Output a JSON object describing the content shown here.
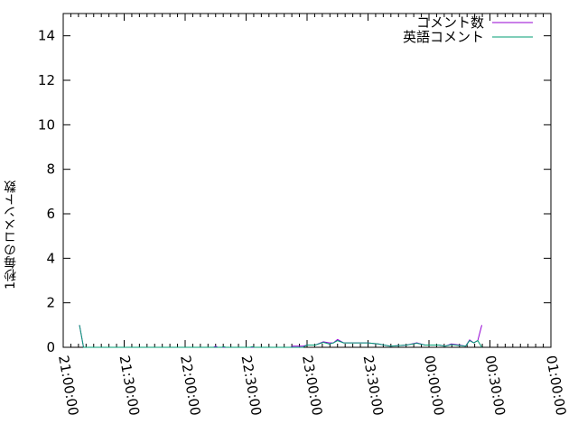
{
  "chart_data": {
    "type": "line",
    "title": "",
    "xlabel": "",
    "ylabel": "1秒毎のコメント数",
    "xlim": [
      "21:00:00",
      "01:00:00"
    ],
    "ylim": [
      0,
      15
    ],
    "x_ticks": [
      "21:00:00",
      "21:30:00",
      "22:00:00",
      "22:30:00",
      "23:00:00",
      "23:30:00",
      "00:00:00",
      "00:30:00",
      "01:00:00"
    ],
    "y_ticks": [
      "0",
      "2",
      "4",
      "6",
      "8",
      "10",
      "12",
      "14"
    ],
    "grid": false,
    "legend_position": "top-right",
    "series": [
      {
        "name": "コメント数",
        "color": "#9400d3",
        "points": [
          [
            "21:08",
            1
          ],
          [
            "21:10",
            0
          ],
          [
            "22:14",
            0
          ],
          [
            "22:15",
            0.05
          ],
          [
            "22:16",
            0
          ],
          [
            "22:52",
            0
          ],
          [
            "22:53",
            0.05
          ],
          [
            "22:58",
            0.05
          ],
          [
            "23:00",
            0.1
          ],
          [
            "23:04",
            0.1
          ],
          [
            "23:08",
            0.25
          ],
          [
            "23:11",
            0.2
          ],
          [
            "23:13",
            0.2
          ],
          [
            "23:15",
            0.35
          ],
          [
            "23:18",
            0.2
          ],
          [
            "23:30",
            0.2
          ],
          [
            "23:35",
            0.15
          ],
          [
            "23:41",
            0.05
          ],
          [
            "23:49",
            0.1
          ],
          [
            "23:54",
            0.2
          ],
          [
            "23:58",
            0.1
          ],
          [
            "00:05",
            0.1
          ],
          [
            "00:08",
            0.05
          ],
          [
            "00:11",
            0.15
          ],
          [
            "00:15",
            0.1
          ],
          [
            "00:18",
            0.05
          ],
          [
            "00:20",
            0.33
          ],
          [
            "00:22",
            0.2
          ],
          [
            "00:24",
            0.3
          ],
          [
            "00:26",
            1
          ]
        ]
      },
      {
        "name": "英語コメント",
        "color": "#009e73",
        "points": [
          [
            "21:08",
            1
          ],
          [
            "21:10",
            0
          ],
          [
            "22:18",
            0
          ],
          [
            "22:19",
            0.03
          ],
          [
            "22:20",
            0
          ],
          [
            "22:32",
            0
          ],
          [
            "22:33",
            0.03
          ],
          [
            "22:34",
            0
          ],
          [
            "22:52",
            0
          ],
          [
            "22:58",
            0
          ],
          [
            "23:00",
            0.1
          ],
          [
            "23:04",
            0.1
          ],
          [
            "23:08",
            0.22
          ],
          [
            "23:11",
            0.15
          ],
          [
            "23:13",
            0.2
          ],
          [
            "23:15",
            0.3
          ],
          [
            "23:18",
            0.2
          ],
          [
            "23:30",
            0.2
          ],
          [
            "23:35",
            0.15
          ],
          [
            "23:41",
            0.05
          ],
          [
            "23:49",
            0.1
          ],
          [
            "23:54",
            0.18
          ],
          [
            "23:58",
            0.1
          ],
          [
            "00:05",
            0.1
          ],
          [
            "00:08",
            0.05
          ],
          [
            "00:11",
            0.12
          ],
          [
            "00:15",
            0.08
          ],
          [
            "00:18",
            0.05
          ],
          [
            "00:20",
            0.3
          ],
          [
            "00:22",
            0.2
          ],
          [
            "00:24",
            0.3
          ],
          [
            "00:26",
            0
          ]
        ]
      }
    ]
  }
}
